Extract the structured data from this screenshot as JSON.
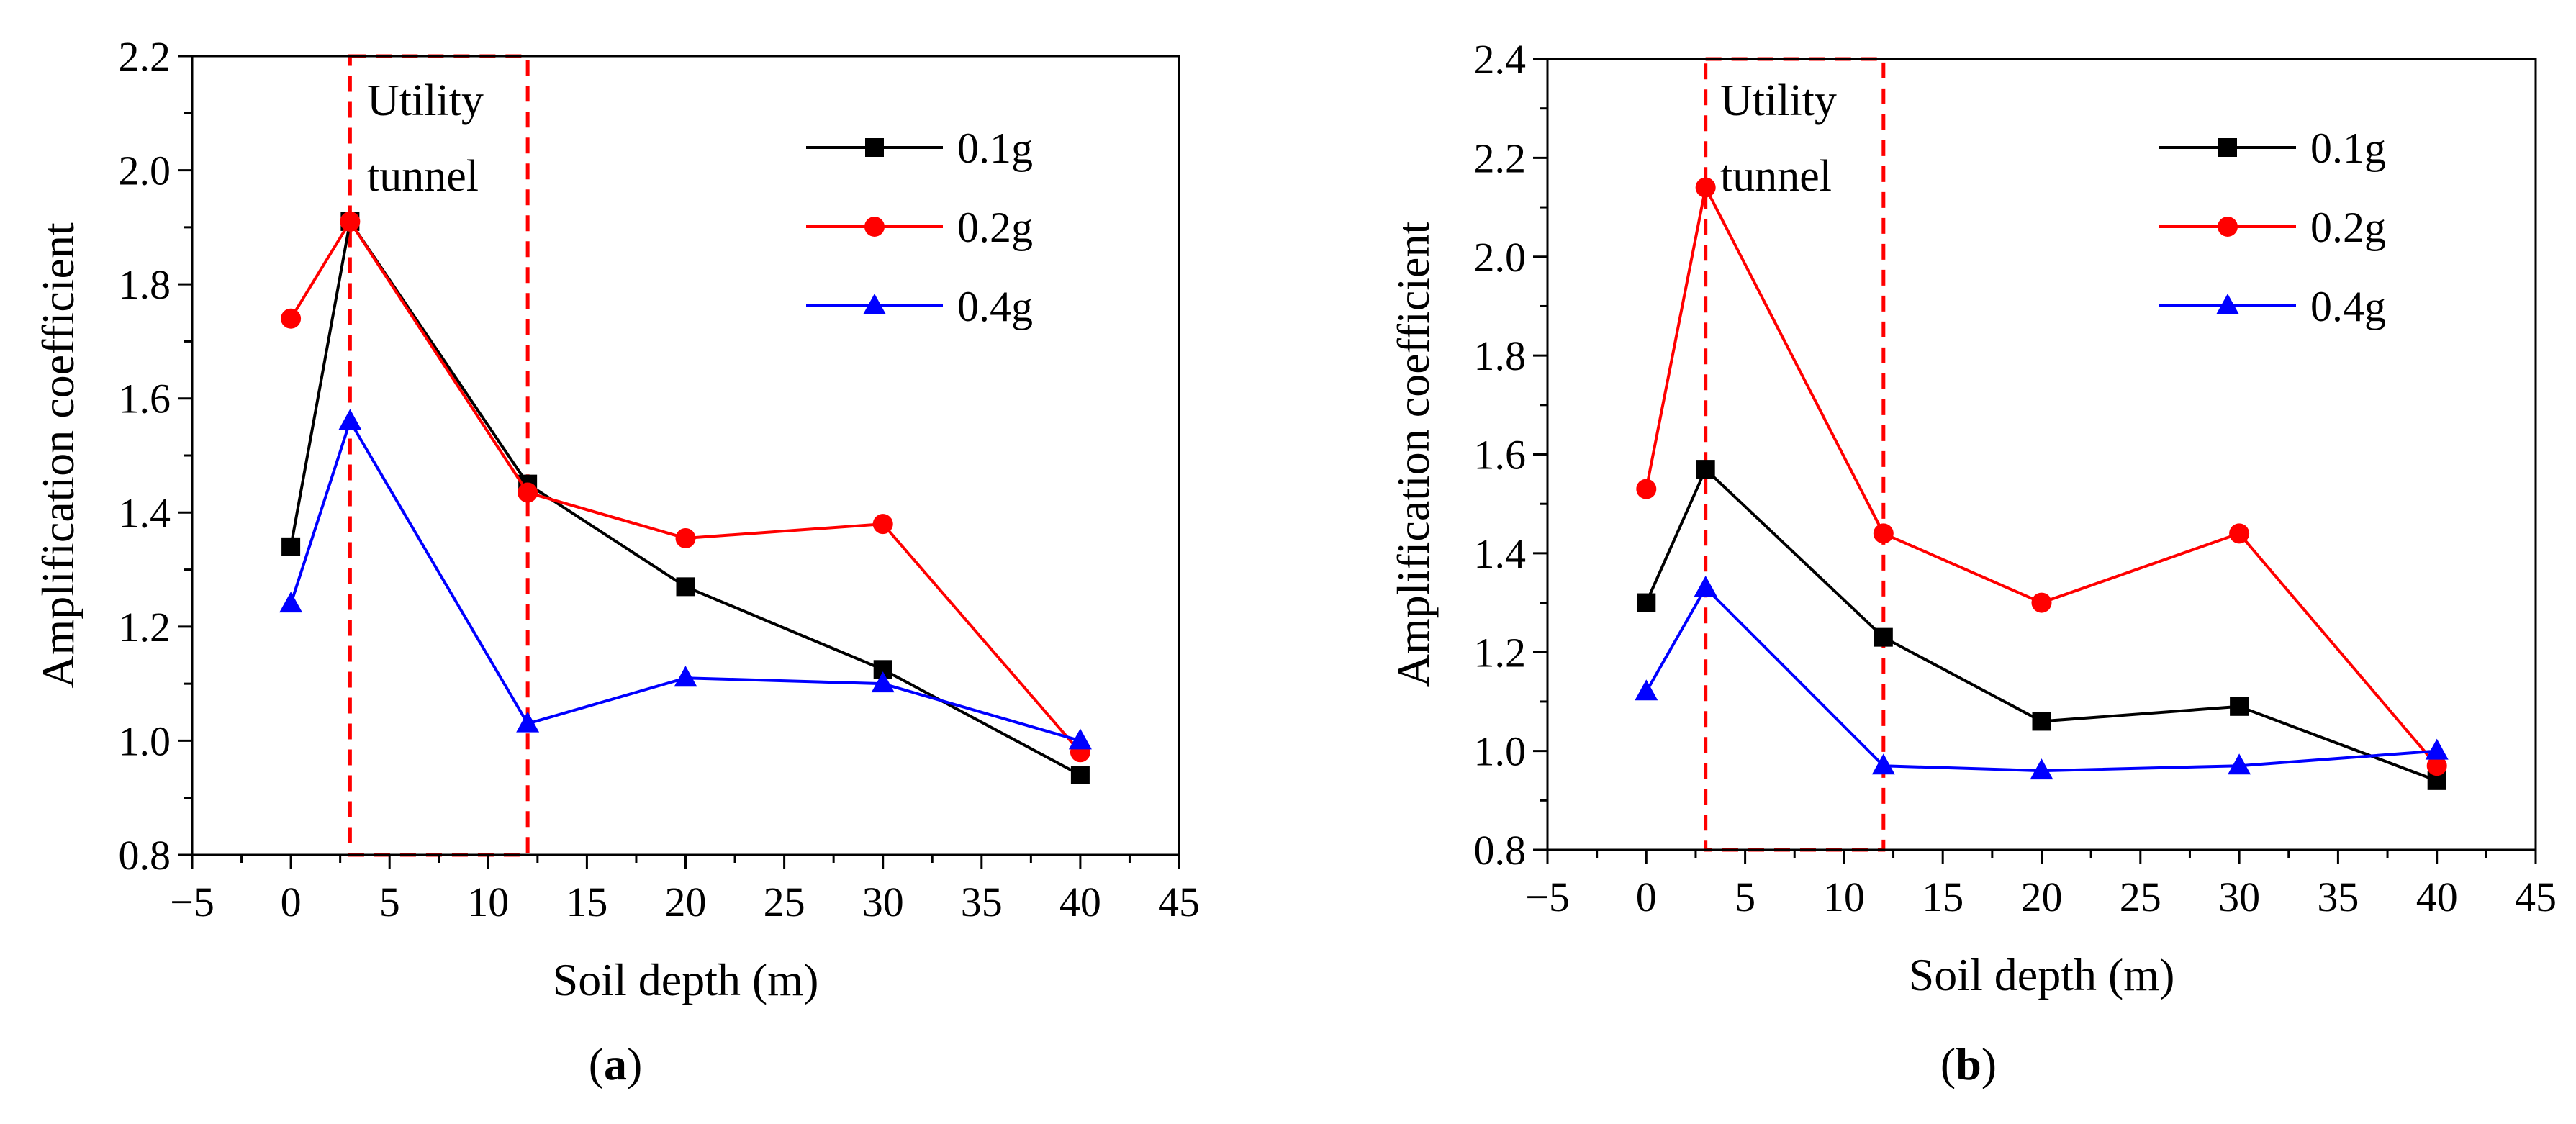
{
  "chart_data": [
    {
      "type": "line",
      "panel_label": "a",
      "xlabel": "Soil depth (m)",
      "ylabel": "Amplification coefficient",
      "xlim": [
        -5,
        45
      ],
      "ylim": [
        0.8,
        2.2
      ],
      "xticks": [
        -5,
        0,
        5,
        10,
        15,
        20,
        25,
        30,
        35,
        40,
        45
      ],
      "yticks": [
        0.8,
        1.0,
        1.2,
        1.4,
        1.6,
        1.8,
        2.0,
        2.2
      ],
      "x": [
        0,
        3,
        12,
        20,
        30,
        40
      ],
      "series": [
        {
          "name": "0.1g",
          "color": "#000000",
          "marker": "square",
          "values": [
            1.34,
            1.91,
            1.45,
            1.27,
            1.125,
            0.94
          ]
        },
        {
          "name": "0.2g",
          "color": "#ff0000",
          "marker": "circle",
          "values": [
            1.74,
            1.91,
            1.435,
            1.355,
            1.38,
            0.98
          ]
        },
        {
          "name": "0.4g",
          "color": "#0000ff",
          "marker": "triangle",
          "values": [
            1.24,
            1.56,
            1.03,
            1.11,
            1.1,
            1.0
          ]
        }
      ],
      "annotation": {
        "line1": "Utility",
        "line2": "tunnel",
        "x_range": [
          3,
          12
        ],
        "color": "#ff0000",
        "style": "dashed"
      },
      "legend": "top-right",
      "grid": false
    },
    {
      "type": "line",
      "panel_label": "b",
      "xlabel": "Soil depth (m)",
      "ylabel": "Amplification coefficient",
      "xlim": [
        -5,
        45
      ],
      "ylim": [
        0.8,
        2.4
      ],
      "xticks": [
        -5,
        0,
        5,
        10,
        15,
        20,
        25,
        30,
        35,
        40,
        45
      ],
      "yticks": [
        0.8,
        1.0,
        1.2,
        1.4,
        1.6,
        1.8,
        2.0,
        2.2,
        2.4
      ],
      "x": [
        0,
        3,
        12,
        20,
        30,
        40
      ],
      "series": [
        {
          "name": "0.1g",
          "color": "#000000",
          "marker": "square",
          "values": [
            1.3,
            1.57,
            1.23,
            1.06,
            1.09,
            0.94
          ]
        },
        {
          "name": "0.2g",
          "color": "#ff0000",
          "marker": "circle",
          "values": [
            1.53,
            2.14,
            1.44,
            1.3,
            1.44,
            0.97
          ]
        },
        {
          "name": "0.4g",
          "color": "#0000ff",
          "marker": "triangle",
          "values": [
            1.12,
            1.33,
            0.97,
            0.96,
            0.97,
            1.0
          ]
        }
      ],
      "annotation": {
        "line1": "Utility",
        "line2": "tunnel",
        "x_range": [
          3,
          12
        ],
        "color": "#ff0000",
        "style": "dashed"
      },
      "legend": "top-right",
      "grid": false
    }
  ]
}
